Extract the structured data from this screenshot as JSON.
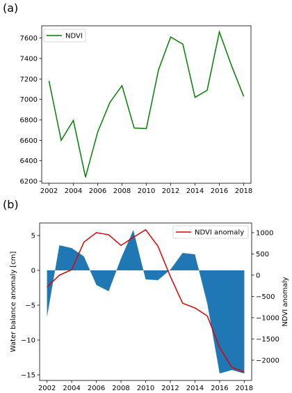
{
  "panels": [
    "(a)",
    "(b)"
  ],
  "chart_data": [
    {
      "type": "line",
      "x": [
        2002,
        2003,
        2004,
        2005,
        2006,
        2007,
        2008,
        2009,
        2010,
        2011,
        2012,
        2013,
        2014,
        2015,
        2016,
        2017,
        2018
      ],
      "series": [
        {
          "name": "NDVI",
          "color": "#008000",
          "values": [
            7180,
            6600,
            6795,
            6240,
            6680,
            6970,
            7135,
            6720,
            6715,
            7290,
            7610,
            7540,
            7020,
            7090,
            7660,
            7330,
            7030
          ]
        }
      ],
      "xlabel": "",
      "ylabel": "",
      "xlim": [
        2001.4,
        2018.6
      ],
      "ylim": [
        6180,
        7720
      ],
      "xticks": [
        "2002",
        "2004",
        "2006",
        "2008",
        "2010",
        "2012",
        "2014",
        "2016",
        "2018"
      ],
      "yticks": [
        "6200",
        "6400",
        "6600",
        "6800",
        "7000",
        "7200",
        "7400",
        "7600"
      ],
      "legend": "top-left",
      "grid": false
    },
    {
      "type": "area",
      "x": [
        2002,
        2003,
        2004,
        2005,
        2006,
        2007,
        2008,
        2009,
        2010,
        2011,
        2012,
        2013,
        2014,
        2015,
        2016,
        2017,
        2018
      ],
      "series": [
        {
          "axis": "left",
          "style": "fill",
          "color": "#1f77b4",
          "values": [
            -6.7,
            3.6,
            3.2,
            2.0,
            -2.1,
            -3.0,
            1.7,
            5.8,
            -1.3,
            -1.4,
            0.1,
            2.5,
            2.3,
            -4.8,
            -14.8,
            -14.3,
            -14.8
          ]
        },
        {
          "name": "NDVI anomaly",
          "axis": "right",
          "style": "line",
          "color": "#e00000",
          "values": [
            -280,
            0,
            130,
            780,
            1000,
            950,
            700,
            890,
            1070,
            680,
            -30,
            -660,
            -770,
            -960,
            -1700,
            -2170,
            -2280
          ]
        }
      ],
      "ylabel": "Water balance anomaly [cm]",
      "ylabel_right": "NDVI anomaly",
      "xlim": [
        2001.4,
        2018.6
      ],
      "ylim": [
        -15.8,
        6.8
      ],
      "ylim_right": [
        -2476.7,
        1227.5
      ],
      "xticks": [
        "2002",
        "2004",
        "2006",
        "2008",
        "2010",
        "2012",
        "2014",
        "2016",
        "2018"
      ],
      "yticks": [
        "5",
        "0",
        "−5",
        "−10",
        "−15"
      ],
      "yticks_right": [
        "1000",
        "500",
        "0",
        "−500",
        "−1000",
        "−1500",
        "−2000"
      ],
      "legend": "top-right",
      "grid": false
    }
  ]
}
